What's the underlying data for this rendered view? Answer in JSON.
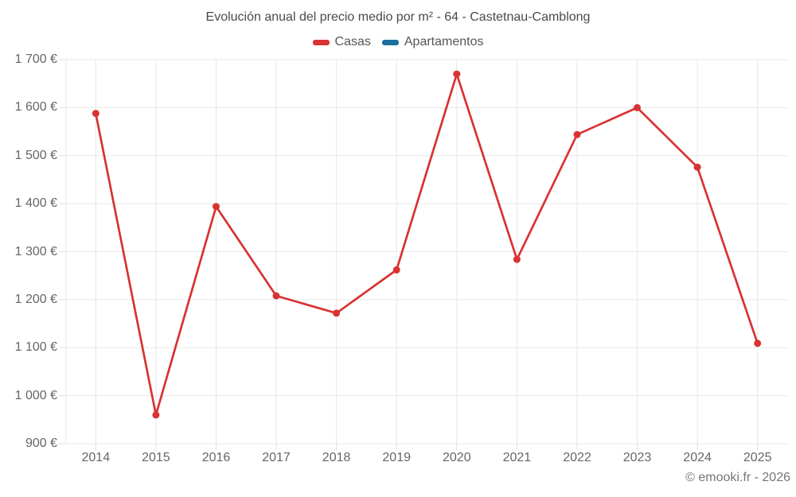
{
  "chart": {
    "title": "Evolución anual del precio medio por m² - 64 - Castetnau-Camblong",
    "legend": [
      {
        "label": "Casas",
        "color": "#d93232"
      },
      {
        "label": "Apartamentos",
        "color": "#1a71a0"
      }
    ]
  },
  "chart_data": {
    "type": "line",
    "title": "Evolución anual del precio medio por m² - 64 - Castetnau-Camblong",
    "categories": [
      "2014",
      "2015",
      "2016",
      "2017",
      "2018",
      "2019",
      "2020",
      "2021",
      "2022",
      "2023",
      "2024",
      "2025"
    ],
    "series": [
      {
        "name": "Casas",
        "color": "#d93232",
        "values": [
          1588,
          960,
          1394,
          1208,
          1172,
          1262,
          1670,
          1284,
          1544,
          1600,
          1476,
          1109
        ]
      },
      {
        "name": "Apartamentos",
        "color": "#1a71a0",
        "values": []
      }
    ],
    "xlabel": "",
    "ylabel": "",
    "ylim": [
      900,
      1700
    ],
    "y_tick_step": 100,
    "y_tick_labels": [
      "900 €",
      "1 000 €",
      "1 100 €",
      "1 200 €",
      "1 300 €",
      "1 400 €",
      "1 500 €",
      "1 600 €",
      "1 700 €"
    ],
    "grid": true,
    "legend_position": "top",
    "marker": "circle"
  },
  "footer": {
    "copyright": "© emooki.fr - 2026"
  },
  "colors": {
    "background": "#ffffff",
    "grid": "#e7e7e7",
    "axis_tick": "#dedede",
    "tick_text": "#666666",
    "title_text": "#4a4a4a",
    "legend_text": "#565656",
    "footer_text": "#757575"
  }
}
